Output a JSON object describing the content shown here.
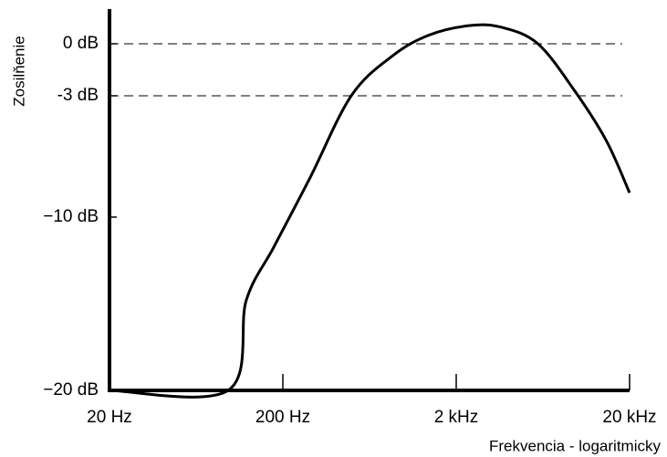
{
  "chart_data": {
    "type": "line",
    "y_label": "Zosilňenie",
    "x_label": "Frekvencia - logaritmicky",
    "x": [
      20,
      96.7,
      123,
      178,
      288,
      496,
      857,
      1393,
      2396,
      3660,
      5920,
      9620,
      14700,
      20000
    ],
    "series": [
      {
        "color": "#000000",
        "values": [
          -20,
          -20,
          -14.8,
          -11.7,
          -7.7,
          -3,
          -0.7,
          0.5,
          1.05,
          0.95,
          0,
          -2.7,
          -5.6,
          -8.6
        ]
      }
    ],
    "xscale": "log",
    "xlim": [
      20,
      20000
    ],
    "xticks": [
      {
        "value": 20,
        "label": "20 Hz"
      },
      {
        "value": 200,
        "label": "200 Hz"
      },
      {
        "value": 2000,
        "label": "2 kHz"
      },
      {
        "value": 20000,
        "label": "20 kHz"
      }
    ],
    "ylim": [
      -20,
      2
    ],
    "yticks": [
      {
        "value": 0,
        "label": "0 dB"
      },
      {
        "value": -3,
        "label": "-3 dB"
      },
      {
        "value": -10,
        "label": "−10 dB"
      },
      {
        "value": -20,
        "label": "−20 dB"
      }
    ],
    "reference_lines": [
      0,
      -3
    ]
  }
}
